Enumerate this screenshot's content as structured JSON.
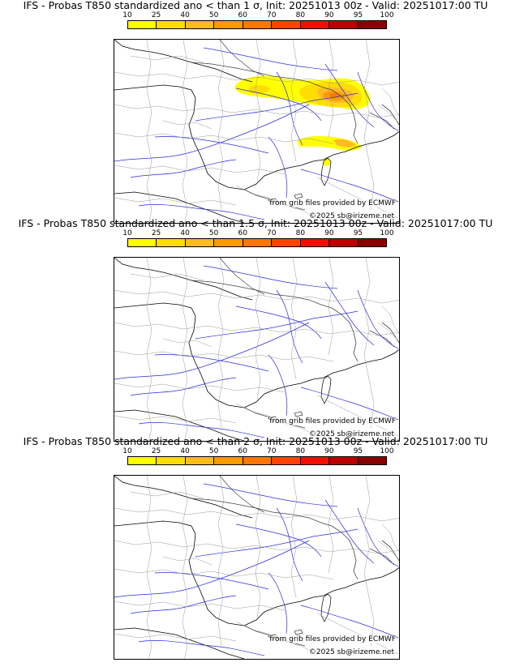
{
  "panels": [
    {
      "title": "IFS - Probas T850  standardized ano < than 1 σ, Init: 20251013 00z - Valid: 20251017:00 TU",
      "credit": "from grib files provided by ECMWF",
      "copyright": "©2025 sb@irizeme.net",
      "has_anomaly": true
    },
    {
      "title": "IFS - Probas T850  standardized ano < than 1.5 σ, Init: 20251013 00z - Valid: 20251017:00 TU",
      "credit": "from grib files provided by ECMWF",
      "copyright": "©2025 sb@irizeme.net",
      "has_anomaly": false
    },
    {
      "title": "IFS - Probas T850  standardized ano < than 2 σ, Init: 20251013 00z - Valid: 20251017:00 TU",
      "credit": "from grib files provided by ECMWF",
      "copyright": "©2025 sb@irizeme.net",
      "has_anomaly": false
    }
  ],
  "colorbar": {
    "labels": [
      "10",
      "25",
      "40",
      "50",
      "60",
      "70",
      "80",
      "90",
      "95",
      "100"
    ],
    "colors": [
      "#ffff00",
      "#ffdd00",
      "#ffbb22",
      "#ff9900",
      "#ff7700",
      "#ff4400",
      "#ee1100",
      "#bb0000",
      "#880000"
    ]
  }
}
